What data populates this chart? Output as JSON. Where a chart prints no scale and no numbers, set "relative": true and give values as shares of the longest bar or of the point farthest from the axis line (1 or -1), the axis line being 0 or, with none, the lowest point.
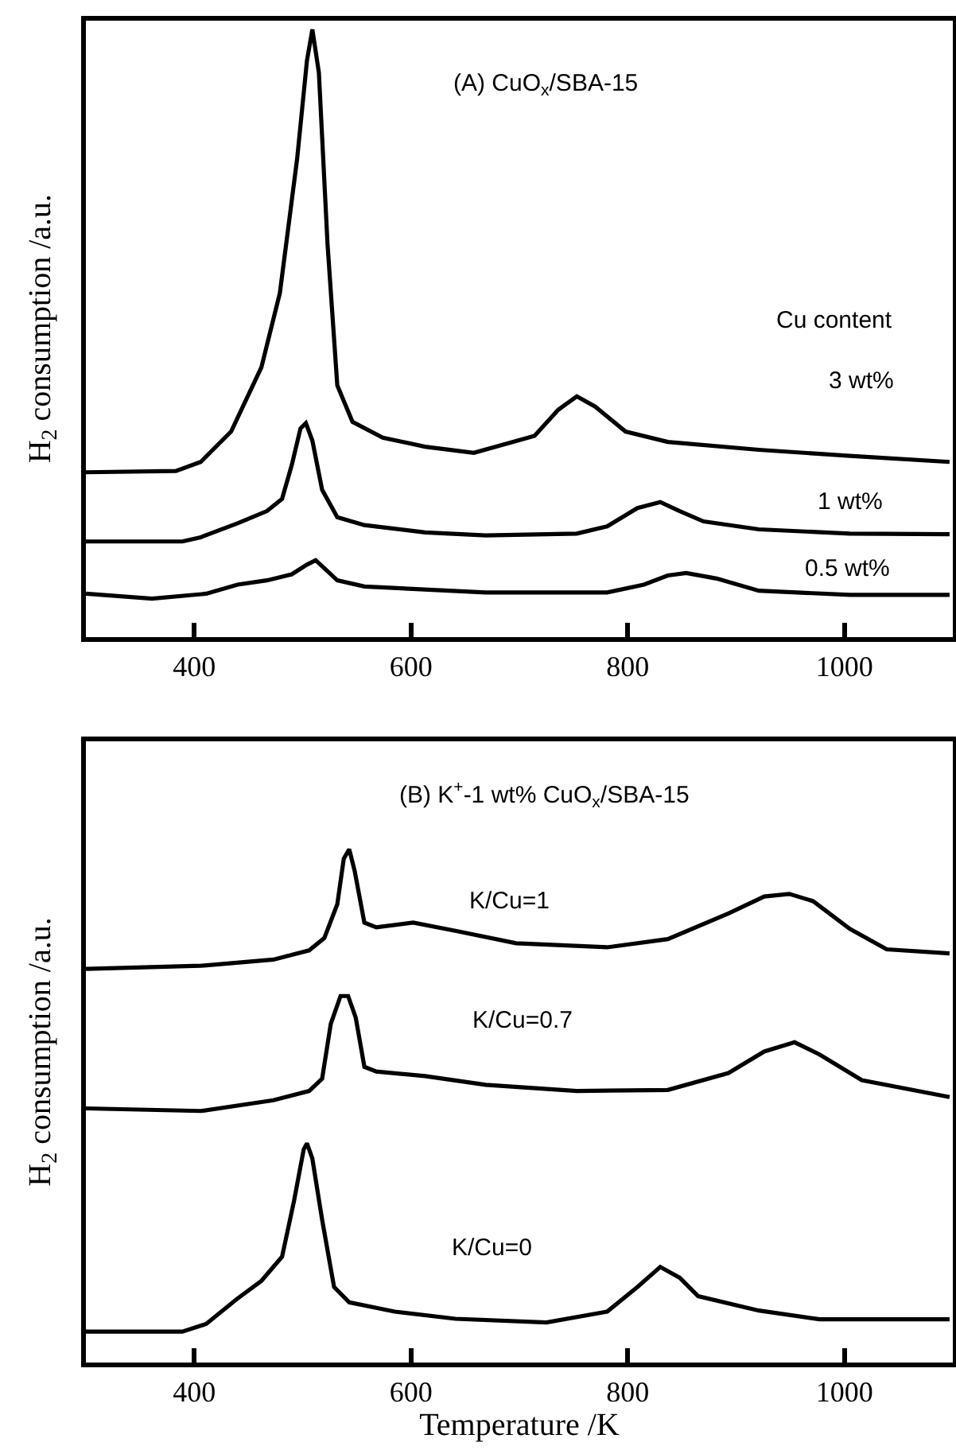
{
  "chart_data": [
    {
      "type": "line",
      "relative": true,
      "title": "(A) CuO$_{x}$/SBA-15",
      "ylabel": "H$_{2}$ consumption /a.u.",
      "legend_title": "Cu content",
      "xlim": [
        300,
        1100
      ],
      "xticks": [
        400,
        600,
        800,
        1000
      ],
      "series": [
        {
          "name": "3 wt%",
          "color": "#000000",
          "x": [
            300,
            383,
            406,
            434,
            462,
            479,
            495,
            504,
            509,
            515,
            523,
            532,
            546,
            574,
            613,
            658,
            714,
            736,
            753,
            770,
            798,
            837,
            921,
            1005,
            1097
          ],
          "values": [
            0.271,
            0.273,
            0.288,
            0.338,
            0.444,
            0.566,
            0.788,
            0.949,
            1.0,
            0.929,
            0.646,
            0.414,
            0.354,
            0.328,
            0.313,
            0.303,
            0.331,
            0.374,
            0.396,
            0.379,
            0.338,
            0.321,
            0.308,
            0.298,
            0.288
          ]
        },
        {
          "name": "1 wt%",
          "color": "#000000",
          "x": [
            300,
            389,
            406,
            440,
            467,
            481,
            490,
            498,
            503,
            509,
            518,
            532,
            557,
            613,
            669,
            753,
            781,
            809,
            830,
            848,
            870,
            921,
            1005,
            1097
          ],
          "values": [
            0.157,
            0.157,
            0.164,
            0.187,
            0.207,
            0.227,
            0.283,
            0.343,
            0.352,
            0.323,
            0.242,
            0.197,
            0.184,
            0.172,
            0.167,
            0.17,
            0.182,
            0.212,
            0.222,
            0.207,
            0.19,
            0.177,
            0.17,
            0.169
          ]
        },
        {
          "name": "0.5 wt%",
          "color": "#000000",
          "x": [
            300,
            361,
            411,
            440,
            467,
            490,
            504,
            512,
            520,
            532,
            557,
            669,
            781,
            815,
            837,
            854,
            882,
            921,
            1005,
            1097
          ],
          "values": [
            0.071,
            0.063,
            0.071,
            0.086,
            0.093,
            0.103,
            0.119,
            0.126,
            0.113,
            0.093,
            0.083,
            0.073,
            0.073,
            0.086,
            0.101,
            0.105,
            0.096,
            0.076,
            0.069,
            0.069
          ]
        }
      ]
    },
    {
      "type": "line",
      "relative": true,
      "title": "(B) K$^{+}$-1 wt% CuO$_{x}$/SBA-15",
      "xlabel": "Temperature /K",
      "ylabel": "H$_{2}$ consumption /a.u.",
      "xlim": [
        300,
        1100
      ],
      "xticks": [
        400,
        600,
        800,
        1000
      ],
      "series": [
        {
          "name": "K/Cu=1",
          "color": "#000000",
          "x": [
            300,
            406,
            473,
            506,
            520,
            532,
            538,
            543,
            548,
            557,
            568,
            602,
            641,
            697,
            781,
            837,
            893,
            926,
            949,
            971,
            1005,
            1039,
            1097
          ],
          "values": [
            0.767,
            0.773,
            0.785,
            0.803,
            0.827,
            0.893,
            0.982,
            1.0,
            0.958,
            0.857,
            0.848,
            0.857,
            0.841,
            0.817,
            0.809,
            0.825,
            0.875,
            0.908,
            0.913,
            0.899,
            0.845,
            0.805,
            0.797
          ]
        },
        {
          "name": "K/Cu=0.7",
          "color": "#000000",
          "x": [
            300,
            406,
            473,
            506,
            518,
            526,
            535,
            542,
            549,
            557,
            568,
            613,
            669,
            753,
            837,
            893,
            926,
            954,
            977,
            1016,
            1097
          ],
          "values": [
            0.495,
            0.49,
            0.511,
            0.529,
            0.553,
            0.66,
            0.714,
            0.714,
            0.672,
            0.576,
            0.567,
            0.558,
            0.541,
            0.529,
            0.531,
            0.564,
            0.606,
            0.624,
            0.6,
            0.55,
            0.517
          ]
        },
        {
          "name": "K/Cu=0",
          "color": "#000000",
          "x": [
            300,
            389,
            411,
            439,
            462,
            481,
            492,
            501,
            504,
            509,
            518,
            529,
            543,
            585,
            641,
            725,
            781,
            809,
            830,
            848,
            865,
            921,
            977,
            1097
          ],
          "values": [
            0.06,
            0.06,
            0.075,
            0.123,
            0.159,
            0.206,
            0.314,
            0.415,
            0.427,
            0.397,
            0.278,
            0.147,
            0.117,
            0.099,
            0.085,
            0.078,
            0.099,
            0.147,
            0.186,
            0.165,
            0.129,
            0.101,
            0.084,
            0.084
          ]
        }
      ]
    }
  ]
}
